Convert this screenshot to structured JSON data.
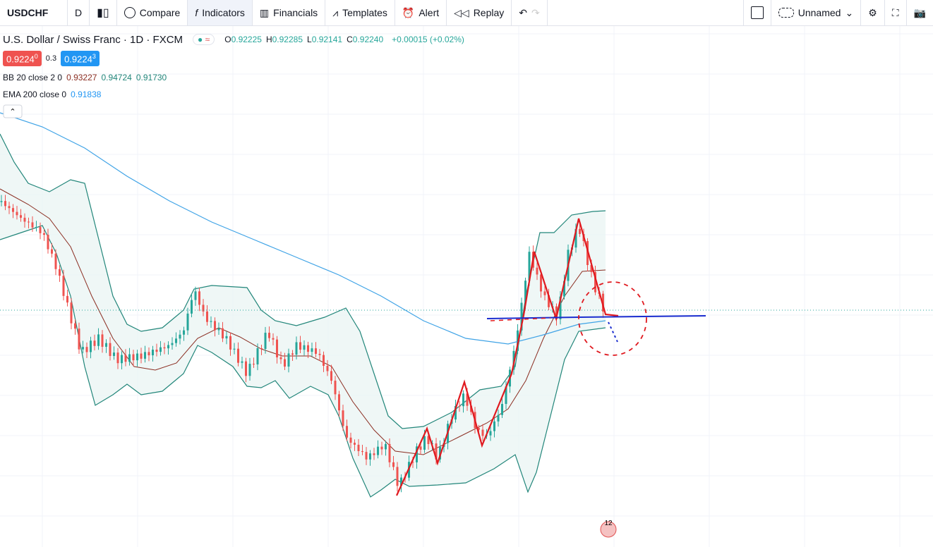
{
  "toolbar": {
    "symbol": "USDCHF",
    "interval": "D",
    "items": [
      "Compare",
      "Indicators",
      "Financials",
      "Templates",
      "Alert",
      "Replay"
    ],
    "layout_name": "Unnamed"
  },
  "legend": {
    "title": "U.S. Dollar / Swiss Franc · 1D · FXCM",
    "ohlc": [
      {
        "label": "O",
        "value": "0.92225"
      },
      {
        "label": "H",
        "value": "0.92285"
      },
      {
        "label": "L",
        "value": "0.92141"
      },
      {
        "label": "C",
        "value": "0.92240"
      }
    ],
    "change": "+0.00015 (+0.02%)",
    "sell_price": "0.9224",
    "sell_pip": "0",
    "spread": "0.3",
    "buy_price": "0.9224",
    "buy_pip": "3",
    "indicators": [
      {
        "name": "BB 20 close 2 0",
        "values": [
          "0.93227",
          "0.94724",
          "0.91730"
        ]
      },
      {
        "name": "EMA 200 close 0",
        "values": [
          "0.91838"
        ]
      }
    ]
  },
  "badge": "12"
}
